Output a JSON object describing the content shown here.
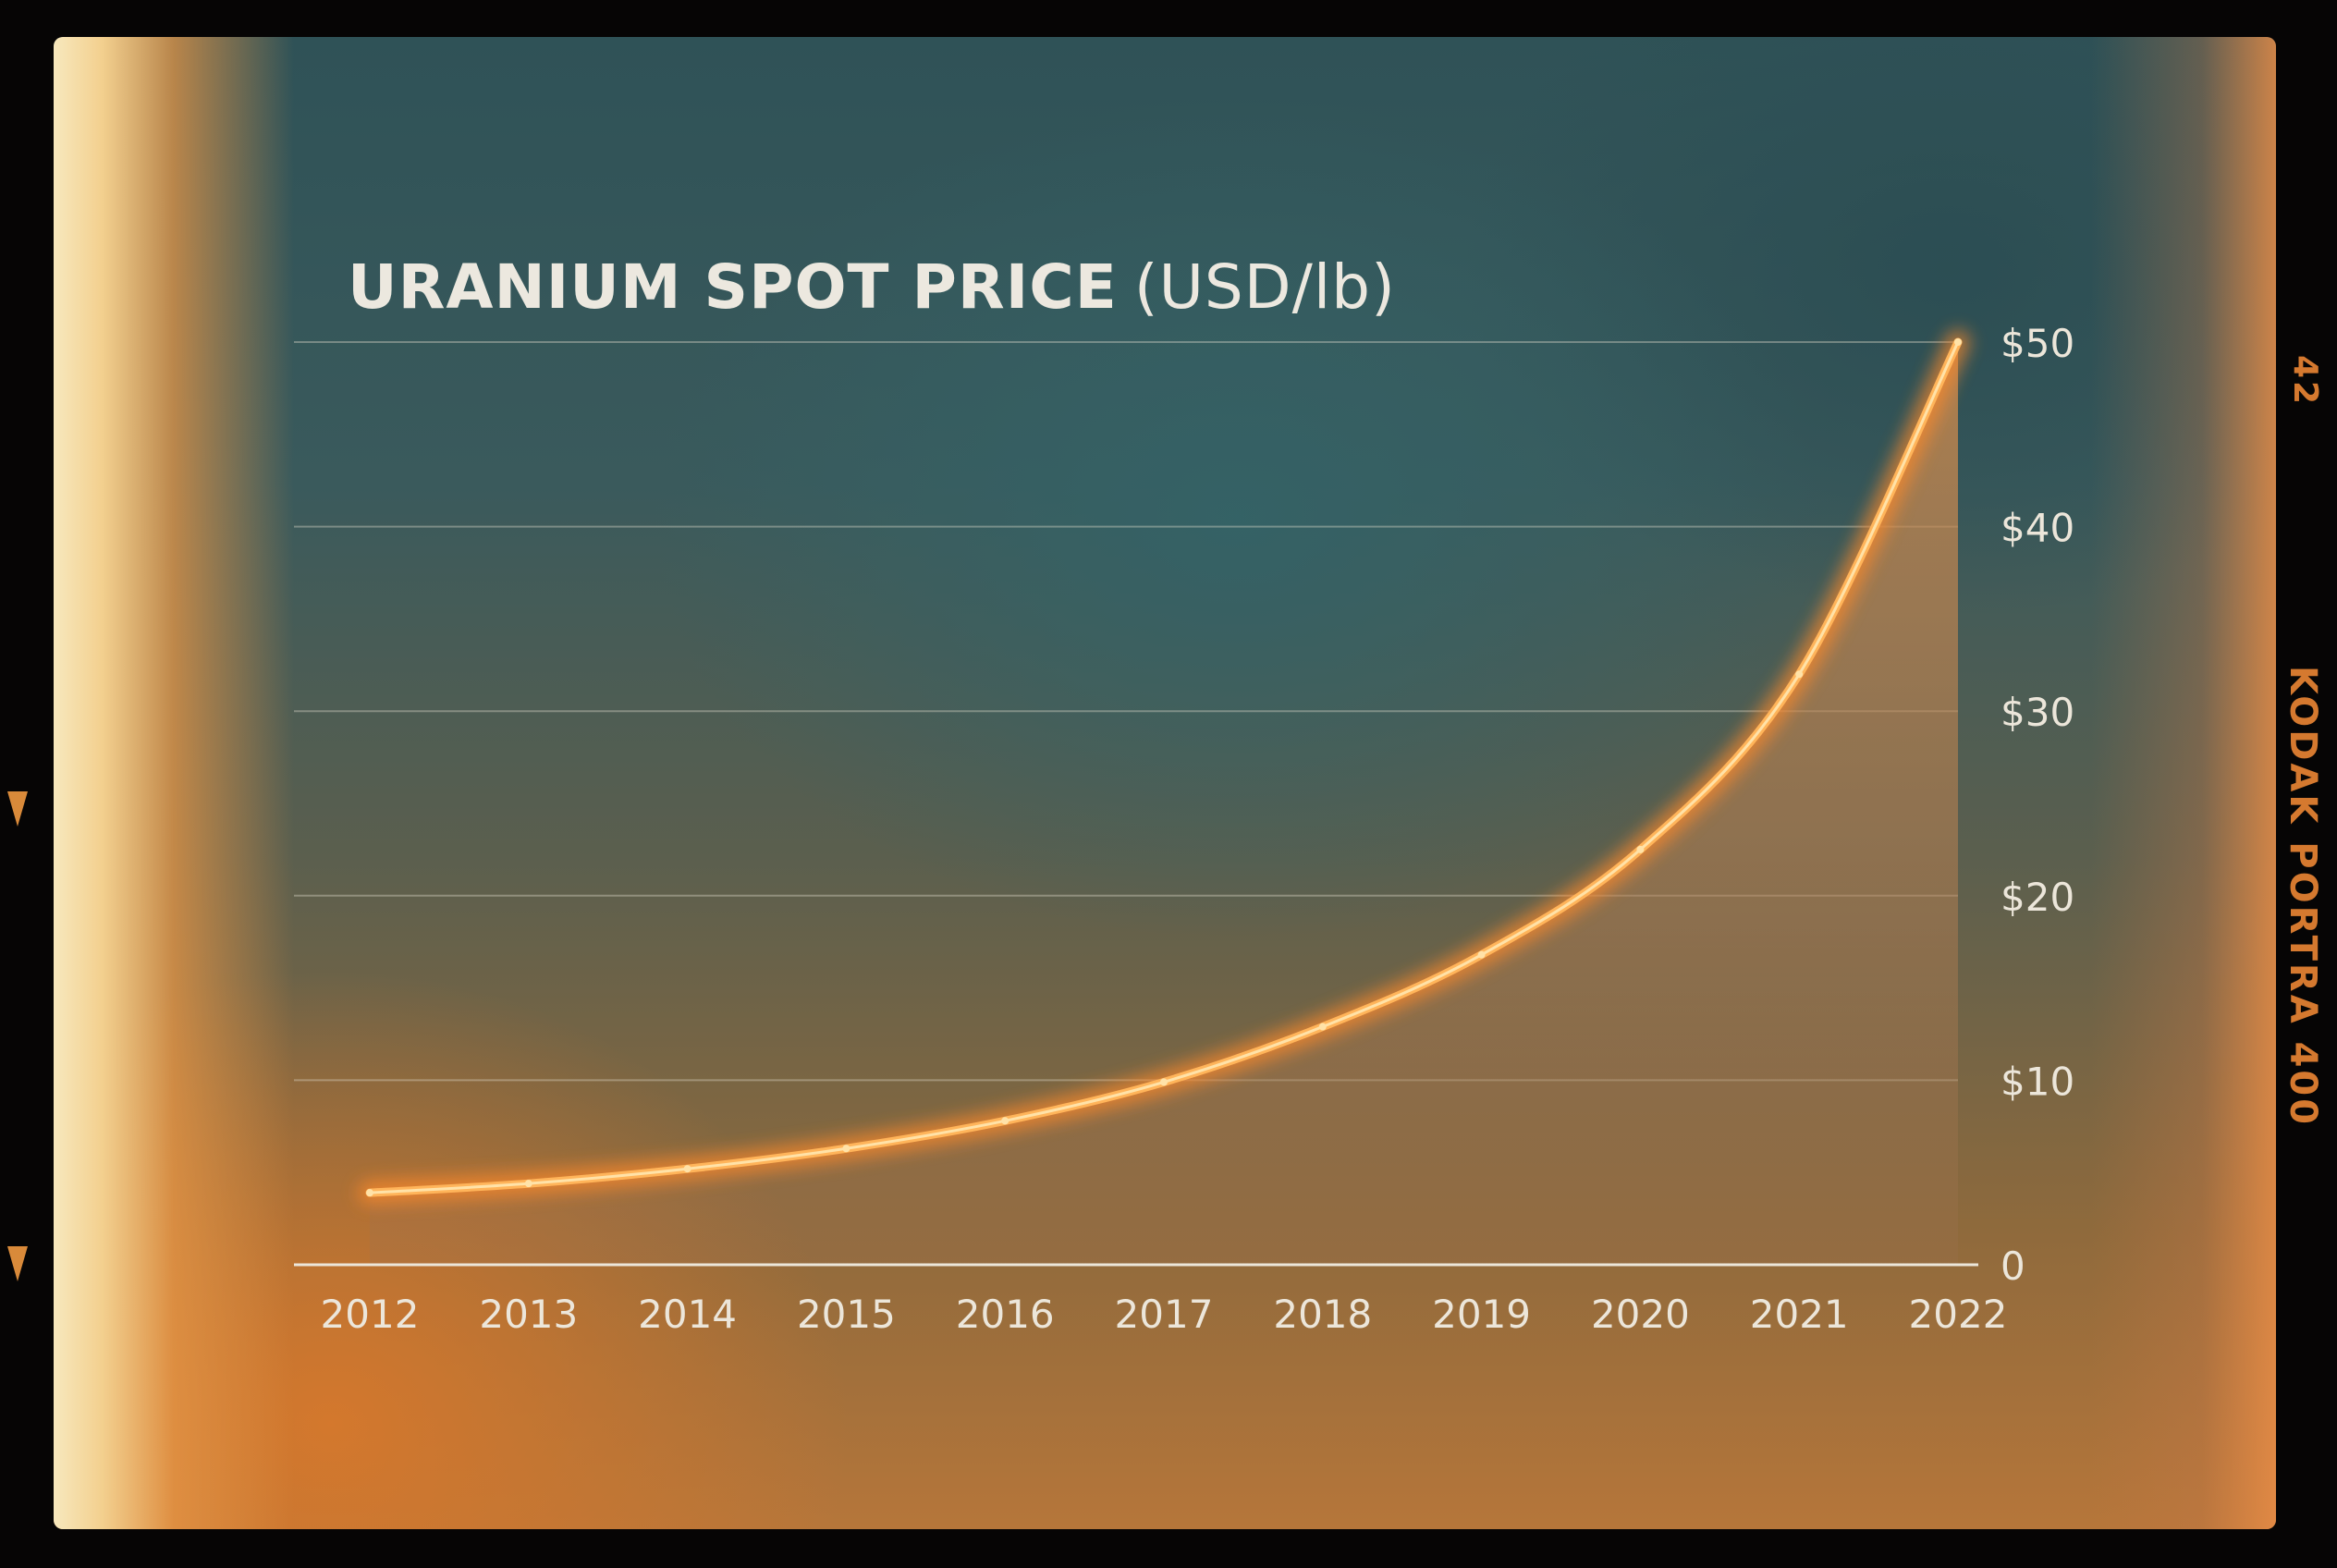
{
  "chart_data": {
    "type": "line",
    "title": "URANIUM SPOT PRICE",
    "title_unit": "(USD/lb)",
    "x": [
      "2012",
      "2013",
      "2014",
      "2015",
      "2016",
      "2017",
      "2018",
      "2019",
      "2020",
      "2021",
      "2022"
    ],
    "series": [
      {
        "values": [
          3.9,
          4.4,
          5.2,
          6.3,
          7.8,
          9.9,
          12.9,
          16.8,
          22.5,
          32.0,
          50.0
        ]
      }
    ],
    "y_ticks": [
      0,
      10,
      20,
      30,
      40,
      50
    ],
    "y_tick_labels": [
      "0",
      "$10",
      "$20",
      "$30",
      "$40",
      "$50"
    ],
    "ylim": [
      0,
      50
    ],
    "y_axis_side": "right",
    "grid": true,
    "fill_under_line": true,
    "line_color": "#ffb45a",
    "fill_color": "#c9864a"
  },
  "film_edge": {
    "frame_number": "42",
    "brand_text": "KODAK PORTRA 400"
  }
}
